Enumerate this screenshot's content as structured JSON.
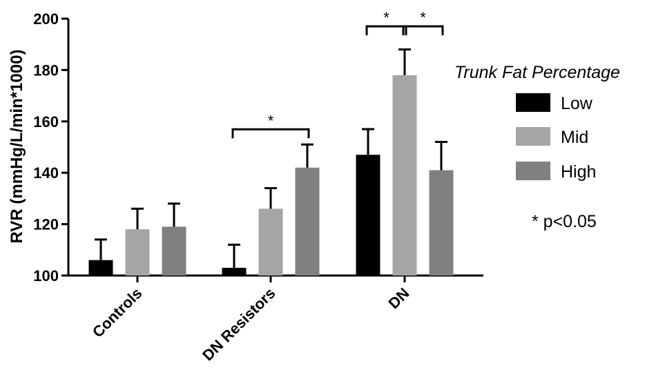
{
  "chart_data": {
    "type": "bar",
    "title": "",
    "xlabel": "",
    "ylabel": "RVR (mmHg/L/min*1000)",
    "ylim": [
      100,
      200
    ],
    "yticks": [
      100,
      120,
      140,
      160,
      180,
      200
    ],
    "categories": [
      "Controls",
      "DN Resistors",
      "DN"
    ],
    "legend": {
      "title": "Trunk Fat Percentage",
      "placement": "right"
    },
    "series": [
      {
        "name": "Low",
        "color": "#000000",
        "values": [
          106,
          103,
          147
        ],
        "errors": [
          8,
          9,
          10
        ]
      },
      {
        "name": "Mid",
        "color": "#a5a5a7",
        "values": [
          118,
          126,
          178
        ],
        "errors": [
          8,
          8,
          10
        ]
      },
      {
        "name": "High",
        "color": "#808080",
        "values": [
          119,
          142,
          141
        ],
        "errors": [
          9,
          9,
          11
        ]
      }
    ],
    "significance": [
      {
        "category": 1,
        "from": "Low",
        "to": "High",
        "label": "*"
      },
      {
        "category": 2,
        "from": "Low",
        "to": "Mid",
        "label": "*"
      },
      {
        "category": 2,
        "from": "Mid",
        "to": "High",
        "label": "*"
      }
    ],
    "annotation": "* p<0.05",
    "grid": false
  }
}
